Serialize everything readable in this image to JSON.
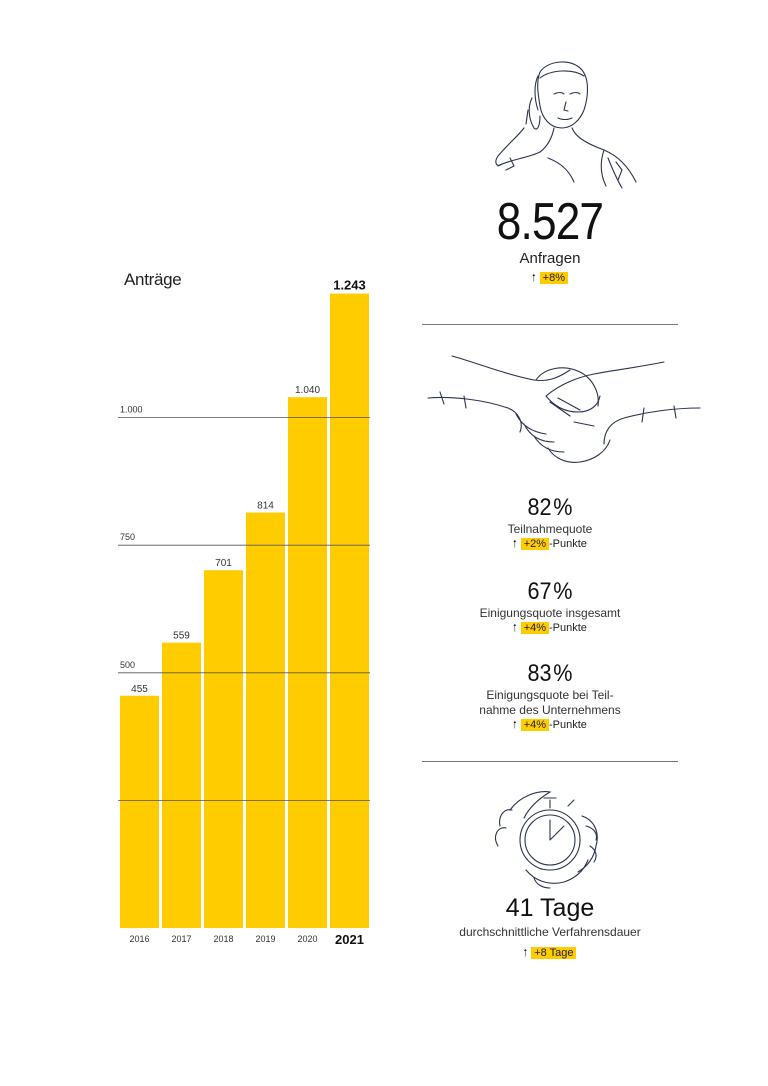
{
  "chart_data": {
    "type": "bar",
    "title": "Anträge",
    "categories": [
      "2016",
      "2017",
      "2018",
      "2019",
      "2020",
      "2021"
    ],
    "values": [
      455,
      559,
      701,
      814,
      1040,
      1243
    ],
    "value_labels": [
      "455",
      "559",
      "701",
      "814",
      "1.040",
      "1.243"
    ],
    "highlight_index": 5,
    "ylim": [
      0,
      1250
    ],
    "gridlines": [
      {
        "value": 250,
        "label": ""
      },
      {
        "value": 500,
        "label": "500"
      },
      {
        "value": 750,
        "label": "750"
      },
      {
        "value": 1000,
        "label": "1.000"
      }
    ],
    "bar_color": "#FFCC00"
  },
  "stats": {
    "inquiries": {
      "value": "8.527",
      "label": "Anfragen",
      "change": "+8%",
      "direction": "up-arrow-icon"
    },
    "participation": {
      "value": "82",
      "unit": "%",
      "label": "Teilnahmequote",
      "change": "+2%",
      "suffix": "-Punkte"
    },
    "agreement_total": {
      "value": "67",
      "unit": "%",
      "label": "Einigungsquote insgesamt",
      "change": "+4%",
      "suffix": "-Punkte"
    },
    "agreement_company": {
      "value": "83",
      "unit": "%",
      "label_line1": "Einigungsquote bei Teil-",
      "label_line2": "nahme des Unternehmens",
      "change": "+4%",
      "suffix": "-Punkte"
    },
    "duration": {
      "value": "41 Tage",
      "label": "durchschnittliche Verfahrensdauer",
      "change": "+8 Tage"
    }
  },
  "icons": {
    "arrow": "up-arrow-icon",
    "person": "woman-on-phone-icon",
    "handshake": "handshake-icon",
    "stopwatch": "stopwatch-in-hand-icon"
  },
  "colors": {
    "accent": "#FFCC00",
    "ink": "#1a1a1a",
    "sketch": "#2b3350"
  }
}
